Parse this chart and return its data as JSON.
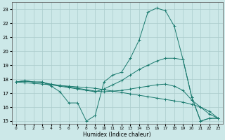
{
  "xlabel": "Humidex (Indice chaleur)",
  "xlim": [
    -0.5,
    23.5
  ],
  "ylim": [
    14.8,
    23.5
  ],
  "yticks": [
    15,
    16,
    17,
    18,
    19,
    20,
    21,
    22,
    23
  ],
  "xticks": [
    0,
    1,
    2,
    3,
    4,
    5,
    6,
    7,
    8,
    9,
    10,
    11,
    12,
    13,
    14,
    15,
    16,
    17,
    18,
    19,
    20,
    21,
    22,
    23
  ],
  "bg_color": "#cce8e8",
  "grid_color": "#aacccc",
  "line_color": "#1a7a6e",
  "lines": [
    {
      "x": [
        0,
        1,
        2,
        3,
        4,
        5,
        6,
        7,
        8,
        9,
        10,
        11,
        12,
        13,
        14,
        15,
        16,
        17,
        18,
        19,
        20,
        21,
        22,
        23
      ],
      "y": [
        17.8,
        17.9,
        17.8,
        17.8,
        17.5,
        17.1,
        16.3,
        16.3,
        15.0,
        15.4,
        17.8,
        18.3,
        18.5,
        19.5,
        20.8,
        22.8,
        23.1,
        22.9,
        21.8,
        19.4,
        16.7,
        15.0,
        15.2,
        15.2
      ]
    },
    {
      "x": [
        0,
        1,
        2,
        3,
        4,
        5,
        6,
        7,
        8,
        9,
        10,
        11,
        12,
        13,
        14,
        15,
        16,
        17,
        18,
        19,
        20,
        21,
        22,
        23
      ],
      "y": [
        17.8,
        17.9,
        17.8,
        17.8,
        17.6,
        17.5,
        17.4,
        17.3,
        17.2,
        17.1,
        17.3,
        17.6,
        17.9,
        18.3,
        18.7,
        19.0,
        19.3,
        19.5,
        19.5,
        19.4,
        16.7,
        15.0,
        15.2,
        15.2
      ]
    },
    {
      "x": [
        0,
        1,
        2,
        3,
        4,
        5,
        6,
        7,
        8,
        9,
        10,
        11,
        12,
        13,
        14,
        15,
        16,
        17,
        18,
        19,
        20,
        21,
        22,
        23
      ],
      "y": [
        17.8,
        17.85,
        17.8,
        17.75,
        17.65,
        17.55,
        17.45,
        17.35,
        17.25,
        17.15,
        17.1,
        17.15,
        17.2,
        17.3,
        17.4,
        17.5,
        17.6,
        17.65,
        17.5,
        17.2,
        16.5,
        16.0,
        15.5,
        15.2
      ]
    },
    {
      "x": [
        0,
        1,
        2,
        3,
        4,
        5,
        6,
        7,
        8,
        9,
        10,
        11,
        12,
        13,
        14,
        15,
        16,
        17,
        18,
        19,
        20,
        21,
        22,
        23
      ],
      "y": [
        17.8,
        17.75,
        17.7,
        17.65,
        17.6,
        17.55,
        17.5,
        17.45,
        17.4,
        17.35,
        17.25,
        17.15,
        17.05,
        16.95,
        16.85,
        16.75,
        16.65,
        16.55,
        16.45,
        16.35,
        16.2,
        16.0,
        15.7,
        15.2
      ]
    }
  ]
}
